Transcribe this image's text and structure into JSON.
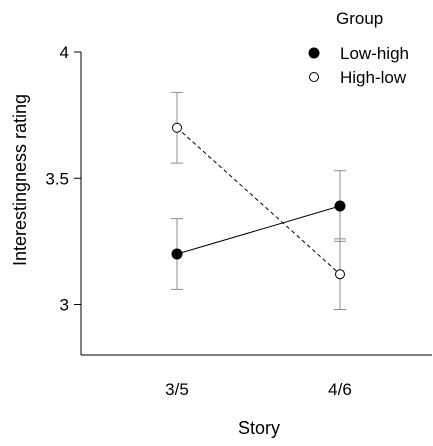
{
  "chart_data": {
    "type": "line",
    "categories": [
      "3/5",
      "4/6"
    ],
    "xlabel": "Story",
    "ylabel": "Interestingness rating",
    "ylim": [
      2.8,
      4.0
    ],
    "yticks": [
      3,
      3.5,
      4
    ],
    "ytick_labels": [
      "3",
      "3.5",
      "4"
    ],
    "grid": false,
    "legend": {
      "title": "Group",
      "position": "top-right"
    },
    "series": [
      {
        "name": "Low-high",
        "values": [
          3.2,
          3.39
        ],
        "error_low": [
          3.06,
          3.25
        ],
        "error_high": [
          3.34,
          3.53
        ],
        "marker": "filled-circle",
        "line": "solid"
      },
      {
        "name": "High-low",
        "values": [
          3.7,
          3.12
        ],
        "error_low": [
          3.56,
          2.98
        ],
        "error_high": [
          3.84,
          3.26
        ],
        "marker": "open-circle",
        "line": "dashed"
      }
    ],
    "colors": {
      "ink": "#000000",
      "error_bar": "#8c8c8c",
      "background": "#ffffff"
    }
  }
}
